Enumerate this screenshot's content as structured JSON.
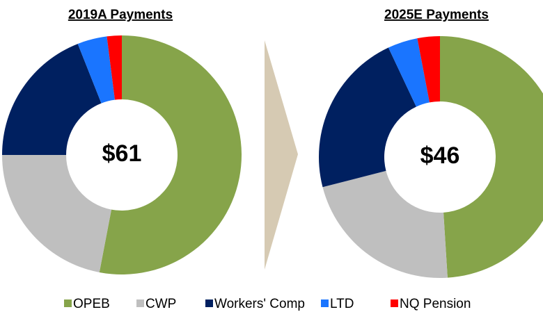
{
  "chart_data": [
    {
      "type": "pie",
      "title": "2019A Payments",
      "center_label": "$61",
      "categories": [
        "OPEB",
        "CWP",
        "Workers' Comp",
        "LTD",
        "NQ Pension"
      ],
      "values": [
        53,
        22,
        19,
        4,
        2
      ],
      "colors": [
        "#86a44a",
        "#bfbfbf",
        "#002060",
        "#1a75ff",
        "#ff0000"
      ],
      "legend": "bottom"
    },
    {
      "type": "pie",
      "title": "2025E Payments",
      "center_label": "$46",
      "categories": [
        "OPEB",
        "CWP",
        "Workers' Comp",
        "LTD",
        "NQ Pension"
      ],
      "values": [
        49,
        22,
        22,
        4,
        3
      ],
      "colors": [
        "#86a44a",
        "#bfbfbf",
        "#002060",
        "#1a75ff",
        "#ff0000"
      ],
      "legend": "bottom"
    }
  ]
}
